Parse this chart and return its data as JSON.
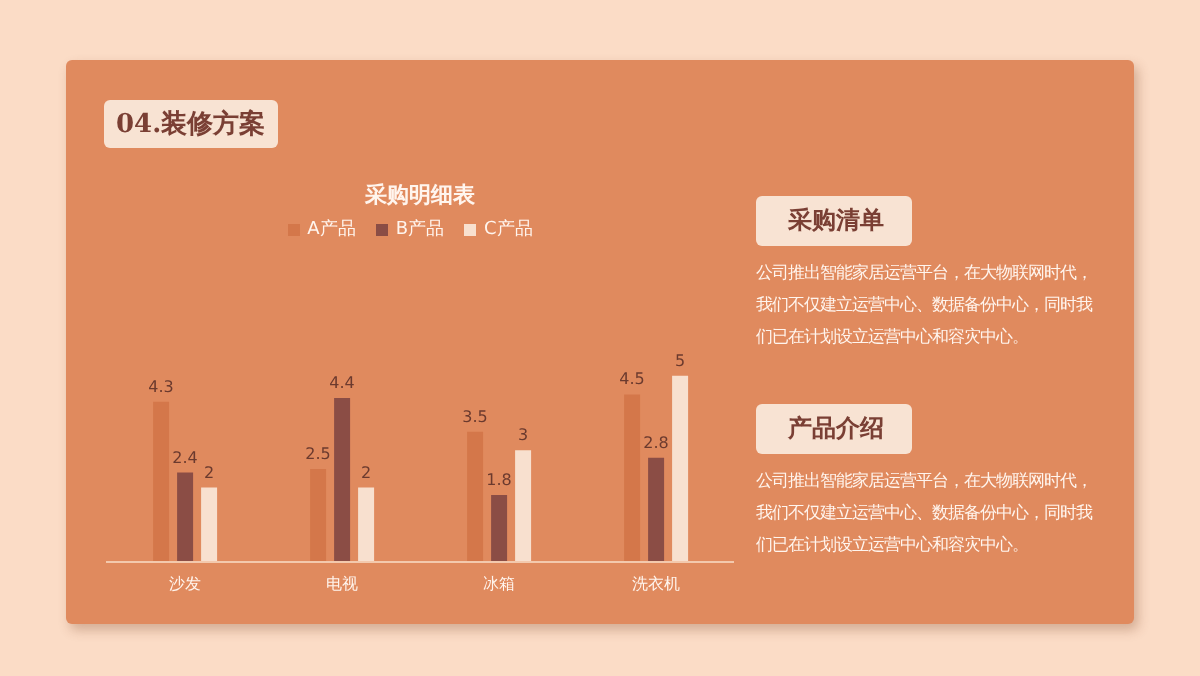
{
  "chart_data": {
    "type": "bar",
    "title": "采购明细表",
    "categories": [
      "沙发",
      "电视",
      "冰箱",
      "洗衣机"
    ],
    "series": [
      {
        "name": "A产品",
        "color": "#d4774a",
        "values": [
          4.3,
          2.5,
          3.5,
          4.5
        ]
      },
      {
        "name": "B产品",
        "color": "#8b4d45",
        "values": [
          2.4,
          4.4,
          1.8,
          2.8
        ]
      },
      {
        "name": "C产品",
        "color": "#f8e0cf",
        "values": [
          2,
          2,
          3,
          5
        ]
      }
    ],
    "tick_labels": "x",
    "data_labels": true,
    "legend": "top",
    "grid": false,
    "annotations": [
      "04.装修方案",
      "采购清单",
      "公司推出智能家居运营平台，在大物联网时代，我们不仅建立运营中心、数据备份中心，同时我们已在计划设立运营中心和容灾中心。",
      "产品介绍",
      "公司推出智能家居运营平台，在大物联网时代，我们不仅建立运营中心、数据备份中心，同时我们已在计划设立运营中心和容灾中心。"
    ]
  }
}
